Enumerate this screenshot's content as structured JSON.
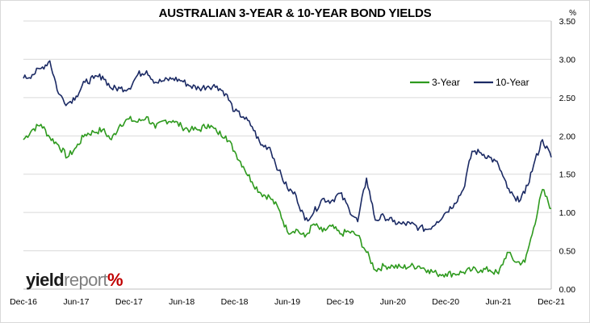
{
  "chart_data": {
    "type": "line",
    "title": "AUSTRALIAN 3-YEAR & 10-YEAR BOND YIELDS",
    "unit": "%",
    "ylim": [
      0,
      3.5
    ],
    "yticks": [
      "0.00",
      "0.50",
      "1.00",
      "1.50",
      "2.00",
      "2.50",
      "3.00",
      "3.50"
    ],
    "xticks": [
      "Dec-16",
      "Jun-17",
      "Dec-17",
      "Jun-18",
      "Dec-18",
      "Jun-19",
      "Dec-19",
      "Jun-20",
      "Dec-20",
      "Jun-21",
      "Dec-21"
    ],
    "legend_position": "top-right",
    "grid": true,
    "series": [
      {
        "name": "3-Year",
        "color": "#2e9a1e",
        "x": [
          "Dec-16",
          "Jan-17",
          "Feb-17",
          "Mar-17",
          "Apr-17",
          "May-17",
          "Jun-17",
          "Jul-17",
          "Aug-17",
          "Sep-17",
          "Oct-17",
          "Nov-17",
          "Dec-17",
          "Jan-18",
          "Feb-18",
          "Mar-18",
          "Apr-18",
          "May-18",
          "Jun-18",
          "Jul-18",
          "Aug-18",
          "Sep-18",
          "Oct-18",
          "Nov-18",
          "Dec-18",
          "Jan-19",
          "Feb-19",
          "Mar-19",
          "Apr-19",
          "May-19",
          "Jun-19",
          "Jul-19",
          "Aug-19",
          "Sep-19",
          "Oct-19",
          "Nov-19",
          "Dec-19",
          "Jan-20",
          "Feb-20",
          "Mar-20",
          "Apr-20",
          "May-20",
          "Jun-20",
          "Jul-20",
          "Aug-20",
          "Sep-20",
          "Oct-20",
          "Nov-20",
          "Dec-20",
          "Jan-21",
          "Feb-21",
          "Mar-21",
          "Apr-21",
          "May-21",
          "Jun-21",
          "Jul-21",
          "Aug-21",
          "Sep-21",
          "Oct-21",
          "Nov-21",
          "Dec-21"
        ],
        "values": [
          1.95,
          2.08,
          2.15,
          1.98,
          1.88,
          1.72,
          1.85,
          2.02,
          2.05,
          2.08,
          1.95,
          2.15,
          2.22,
          2.18,
          2.25,
          2.1,
          2.2,
          2.2,
          2.12,
          2.08,
          2.08,
          2.15,
          2.05,
          2.0,
          1.8,
          1.6,
          1.4,
          1.25,
          1.2,
          1.05,
          0.75,
          0.78,
          0.68,
          0.85,
          0.75,
          0.82,
          0.72,
          0.75,
          0.7,
          0.48,
          0.25,
          0.3,
          0.3,
          0.28,
          0.3,
          0.3,
          0.25,
          0.2,
          0.2,
          0.2,
          0.22,
          0.25,
          0.25,
          0.25,
          0.2,
          0.48,
          0.35,
          0.35,
          0.8,
          1.3,
          1.05
        ]
      },
      {
        "name": "10-Year",
        "color": "#1b2a64",
        "x": [
          "Dec-16",
          "Jan-17",
          "Feb-17",
          "Mar-17",
          "Apr-17",
          "May-17",
          "Jun-17",
          "Jul-17",
          "Aug-17",
          "Sep-17",
          "Oct-17",
          "Nov-17",
          "Dec-17",
          "Jan-18",
          "Feb-18",
          "Mar-18",
          "Apr-18",
          "May-18",
          "Jun-18",
          "Jul-18",
          "Aug-18",
          "Sep-18",
          "Oct-18",
          "Nov-18",
          "Dec-18",
          "Jan-19",
          "Feb-19",
          "Mar-19",
          "Apr-19",
          "May-19",
          "Jun-19",
          "Jul-19",
          "Aug-19",
          "Sep-19",
          "Oct-19",
          "Nov-19",
          "Dec-19",
          "Jan-20",
          "Feb-20",
          "Mar-20",
          "Apr-20",
          "May-20",
          "Jun-20",
          "Jul-20",
          "Aug-20",
          "Sep-20",
          "Oct-20",
          "Nov-20",
          "Dec-20",
          "Jan-21",
          "Feb-21",
          "Mar-21",
          "Apr-21",
          "May-21",
          "Jun-21",
          "Jul-21",
          "Aug-21",
          "Sep-21",
          "Oct-21",
          "Nov-21",
          "Dec-21"
        ],
        "values": [
          2.75,
          2.8,
          2.88,
          2.98,
          2.55,
          2.42,
          2.52,
          2.7,
          2.75,
          2.78,
          2.62,
          2.62,
          2.62,
          2.8,
          2.85,
          2.7,
          2.72,
          2.75,
          2.72,
          2.65,
          2.62,
          2.65,
          2.65,
          2.55,
          2.32,
          2.25,
          2.12,
          1.88,
          1.85,
          1.55,
          1.32,
          1.22,
          0.9,
          1.0,
          1.18,
          1.15,
          1.25,
          1.05,
          0.88,
          1.45,
          0.9,
          0.95,
          0.88,
          0.85,
          0.85,
          0.8,
          0.78,
          0.88,
          1.0,
          1.12,
          1.3,
          1.8,
          1.78,
          1.72,
          1.62,
          1.32,
          1.15,
          1.25,
          1.62,
          1.95,
          1.72
        ]
      }
    ]
  },
  "logo": {
    "part1": "yield",
    "part2": "report",
    "part3": "%"
  }
}
